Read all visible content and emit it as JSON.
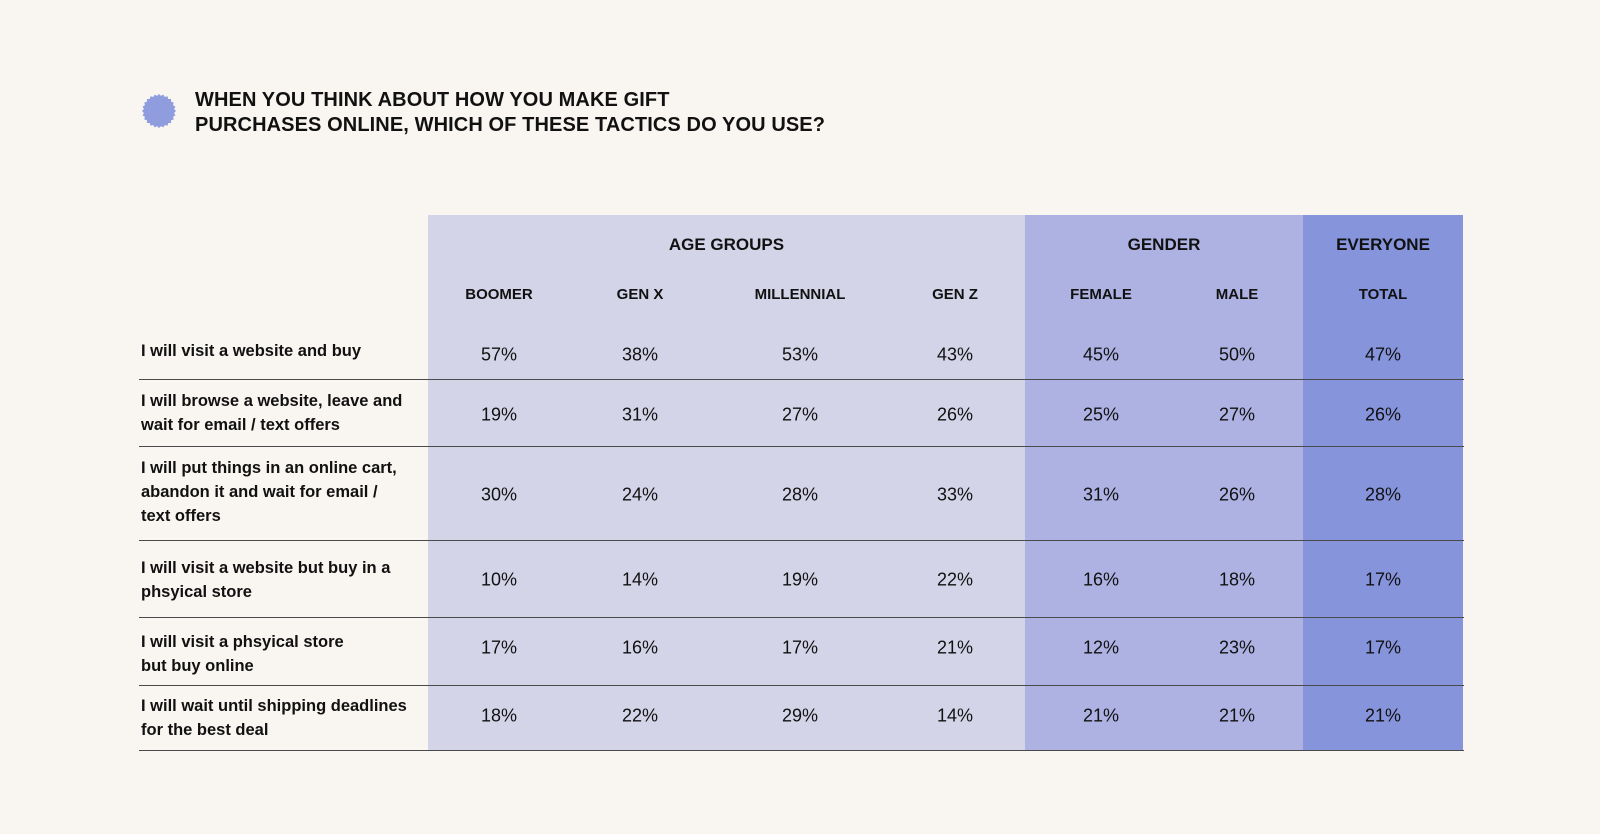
{
  "colors": {
    "background": "#f9f5f1",
    "badge": "#8f9ddf",
    "age_band": "#d4d4e9",
    "gender_band": "#adb2e2",
    "total_band": "#8694dc",
    "text": "#111111",
    "rule": "#4a4a4a"
  },
  "icons": {
    "badge": "scalloped-circle-icon"
  },
  "chart_data": {
    "type": "table",
    "title": "WHEN YOU THINK ABOUT HOW YOU MAKE GIFT\nPURCHASES ONLINE, WHICH OF THESE TACTICS DO YOU USE?",
    "groups": [
      {
        "label": "AGE GROUPS",
        "columns": [
          "BOOMER",
          "GEN X",
          "MILLENNIAL",
          "GEN Z"
        ]
      },
      {
        "label": "GENDER",
        "columns": [
          "FEMALE",
          "MALE"
        ]
      },
      {
        "label": "EVERYONE",
        "columns": [
          "TOTAL"
        ]
      }
    ],
    "rows": [
      {
        "label": "I will visit a website and buy",
        "values": [
          "57%",
          "38%",
          "53%",
          "43%",
          "45%",
          "50%",
          "47%"
        ]
      },
      {
        "label": "I will browse a website, leave and\nwait for email / text offers",
        "values": [
          "19%",
          "31%",
          "27%",
          "26%",
          "25%",
          "27%",
          "26%"
        ]
      },
      {
        "label": "I will put things in an online cart,\nabandon it and wait for email  /\ntext offers",
        "values": [
          "30%",
          "24%",
          "28%",
          "33%",
          "31%",
          "26%",
          "28%"
        ]
      },
      {
        "label": "I will visit a website but buy in a\nphsyical store",
        "values": [
          "10%",
          "14%",
          "19%",
          "22%",
          "16%",
          "18%",
          "17%"
        ]
      },
      {
        "label": "I will visit a phsyical store\nbut buy online",
        "values": [
          "17%",
          "16%",
          "17%",
          "21%",
          "12%",
          "23%",
          "17%"
        ]
      },
      {
        "label": "I will wait until shipping deadlines\nfor the best deal",
        "values": [
          "18%",
          "22%",
          "29%",
          "14%",
          "21%",
          "21%",
          "21%"
        ]
      }
    ]
  }
}
